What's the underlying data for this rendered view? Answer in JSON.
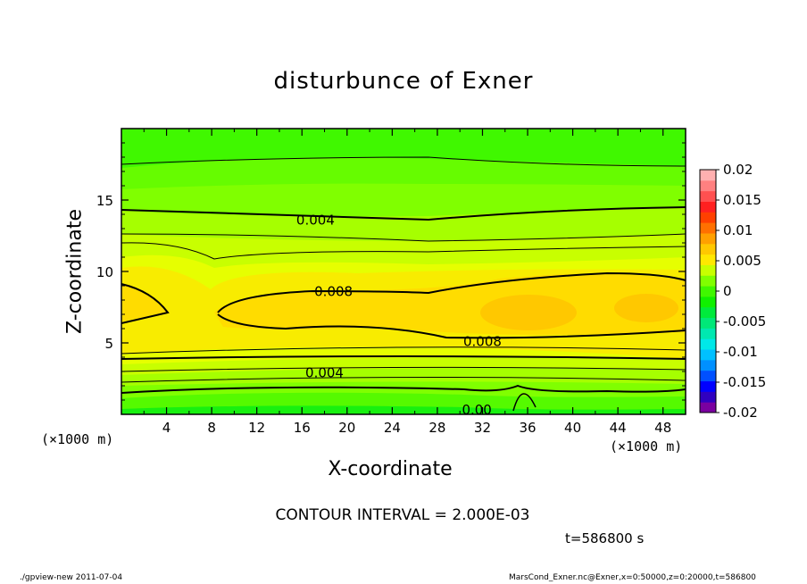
{
  "chart_data": {
    "type": "heatmap",
    "title": "disturbunce of Exner",
    "xlabel": "X-coordinate",
    "ylabel": "Z-coordinate",
    "x_unit": "(×1000 m)",
    "x_range": [
      0,
      50
    ],
    "y_range": [
      0,
      20
    ],
    "x_ticks": [
      4,
      8,
      12,
      16,
      20,
      24,
      28,
      32,
      36,
      40,
      44,
      48
    ],
    "y_ticks": [
      5,
      10,
      15
    ],
    "contour_interval_text": "CONTOUR INTERVAL = 2.000E-03",
    "contour_labels": [
      {
        "text": "0.004",
        "x": 17.2,
        "y": 13.6
      },
      {
        "text": "0.008",
        "x": 18.8,
        "y": 8.6
      },
      {
        "text": "0.008",
        "x": 32.0,
        "y": 5.1
      },
      {
        "text": "0.004",
        "x": 18.0,
        "y": 2.9
      },
      {
        "text": "0.00",
        "x": 31.5,
        "y": 0.3
      }
    ],
    "colorbar": {
      "levels": [
        "0.02",
        "0.015",
        "0.01",
        "0.005",
        "0",
        "-0.005",
        "-0.01",
        "-0.015",
        "-0.02"
      ],
      "range": [
        -0.02,
        0.02
      ],
      "colors": [
        "#7a00a0",
        "#3000c0",
        "#0000ff",
        "#0050ff",
        "#0090ff",
        "#00c0ff",
        "#00e8e8",
        "#00e8b0",
        "#00e878",
        "#00ea3c",
        "#10f000",
        "#40f800",
        "#80ff00",
        "#c8ff00",
        "#ffe800",
        "#ffc800",
        "#ffa000",
        "#ff7000",
        "#ff4000",
        "#ff2020",
        "#ff5050",
        "#ff8080",
        "#ffb0b0"
      ]
    }
  },
  "time_label": "t=586800 s",
  "footer": {
    "left": "./gpview-new   2011-07-04",
    "right": "MarsCond_Exner.nc@Exner,x=0:50000,z=0:20000,t=586800"
  }
}
